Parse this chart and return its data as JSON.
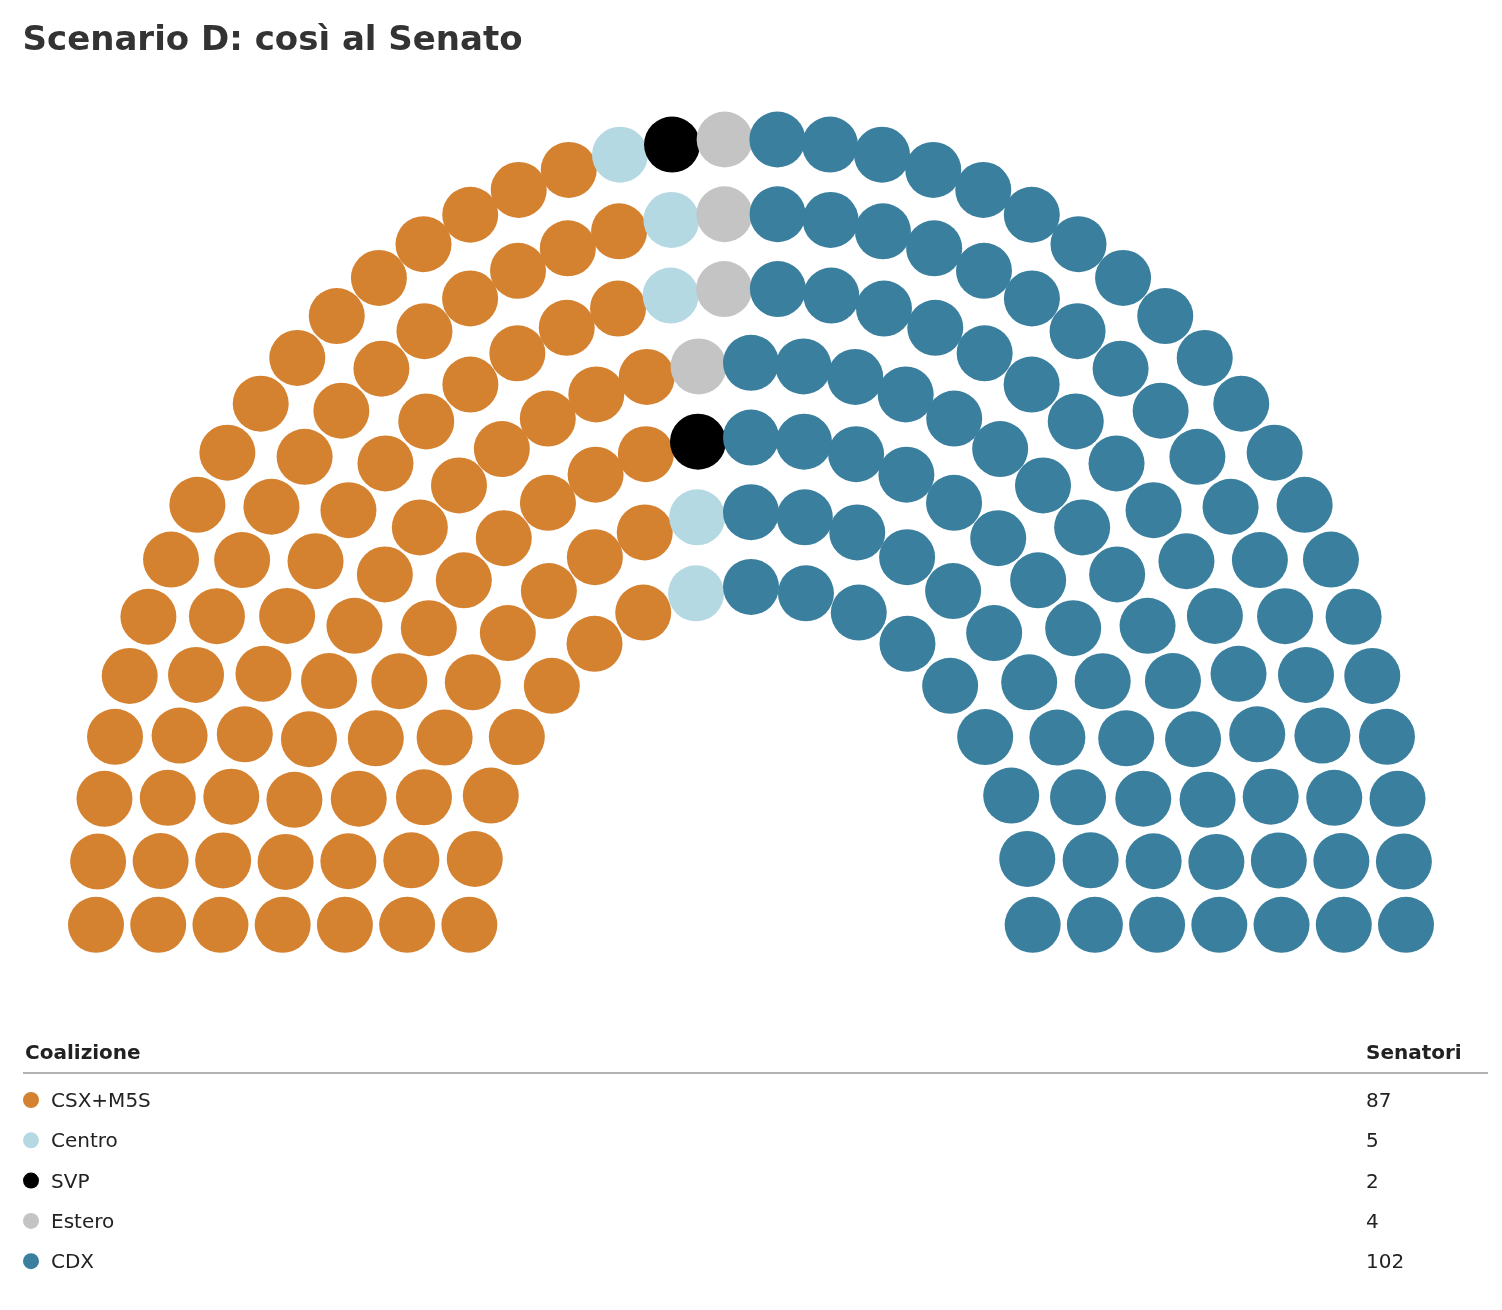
{
  "chart_data": {
    "type": "other",
    "title": "Scenario D: così al Senato",
    "legend_title": "Coalizione",
    "annotations": [
      "Senatori"
    ],
    "data_labels": true,
    "categories": [
      "CSX+M5S",
      "Centro",
      "SVP",
      "Estero",
      "CDX"
    ],
    "values": [
      87,
      5,
      2,
      4,
      102
    ],
    "colors": [
      "#d58230",
      "#b5d9e3",
      "#000000",
      "#c4c4c4",
      "#3a7f9e"
    ]
  }
}
